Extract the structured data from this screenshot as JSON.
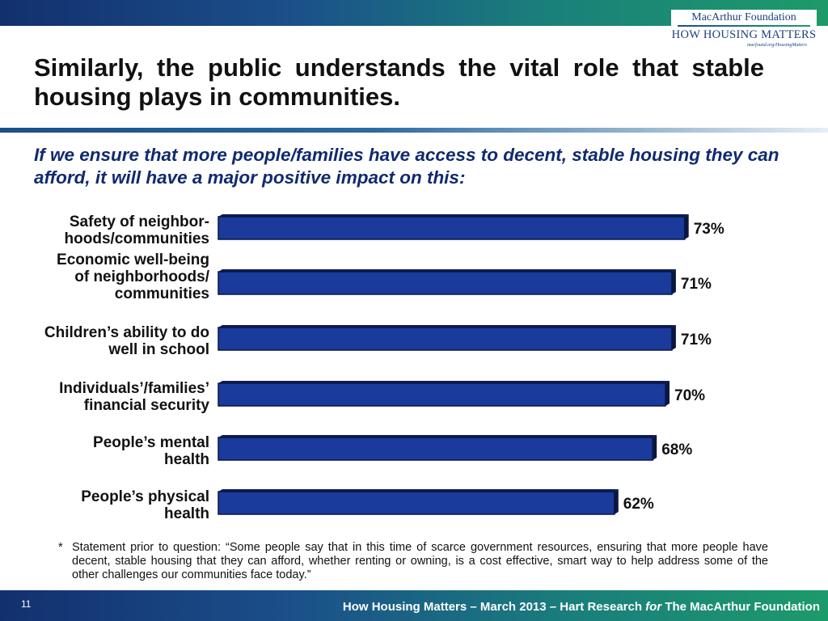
{
  "header": {
    "logo": {
      "org": "MacArthur Foundation",
      "program": "HOW HOUSING MATTERS",
      "url": "macfound.org/HousingMatters"
    }
  },
  "title": "Similarly, the public understands the vital role that stable housing plays in communities.",
  "question": "If we ensure that more people/families have access to decent, stable housing they can afford, it will have a major positive impact on this:",
  "chart_data": {
    "type": "bar",
    "orientation": "horizontal",
    "categories": [
      [
        "Safety of neighbor-",
        "hoods/communities"
      ],
      [
        "Economic well-being",
        "of neighborhoods/",
        "communities"
      ],
      [
        "Children’s ability to do",
        "well in school"
      ],
      [
        "Individuals’/families’",
        "financial security"
      ],
      [
        "People’s mental",
        "health"
      ],
      [
        "People’s physical",
        "health"
      ]
    ],
    "values": [
      73,
      71,
      71,
      70,
      68,
      62
    ],
    "value_labels": [
      "73%",
      "71%",
      "71%",
      "70%",
      "68%",
      "62%"
    ],
    "unit": "%",
    "xlim": [
      0,
      100
    ],
    "grid": false,
    "legend": false,
    "bar_color": "#1a3a9c",
    "bar_edge_color": "#0a1740"
  },
  "footnote": {
    "marker": "*",
    "text": "Statement prior to question:  “Some people say that in this time of scarce government resources, ensuring that more people have decent, stable housing that they can afford, whether renting or owning, is a cost effective, smart way to help address some of the other challenges our communities face today.”"
  },
  "footer": {
    "page_number": "11",
    "credit_before": "How Housing Matters – March 2013 – Hart Research ",
    "credit_for": "for",
    "credit_after": " The MacArthur Foundation"
  }
}
